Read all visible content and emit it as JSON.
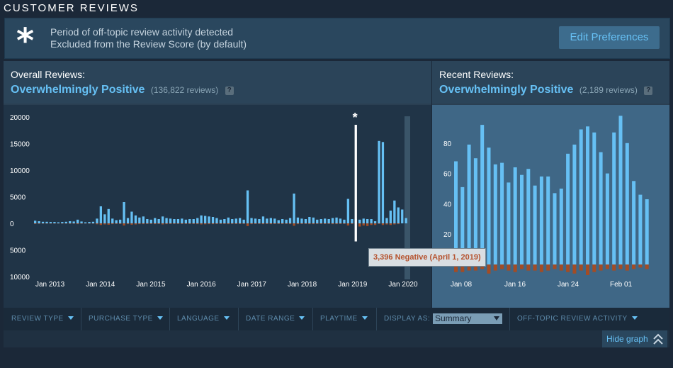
{
  "section_title": "CUSTOMER REVIEWS",
  "notice": {
    "line1": "Period of off-topic review activity detected",
    "line2": "Excluded from the Review Score (by default)",
    "edit_button": "Edit Preferences",
    "icon": "asterisk-icon"
  },
  "overall": {
    "label": "Overall Reviews:",
    "score": "Overwhelmingly Positive",
    "count": "(136,822 reviews)",
    "help": "?"
  },
  "recent": {
    "label": "Recent Reviews:",
    "score": "Overwhelmingly Positive",
    "count": "(2,189 reviews)",
    "help": "?"
  },
  "tooltip": "3,396 Negative (April 1, 2019)",
  "offtopic_marker": "*",
  "filters": {
    "review_type": "REVIEW TYPE",
    "purchase_type": "PURCHASE TYPE",
    "language": "LANGUAGE",
    "date_range": "DATE RANGE",
    "playtime": "PLAYTIME",
    "display_as_label": "DISPLAY AS:",
    "display_as_value": "Summary",
    "off_topic": "OFF-TOPIC REVIEW ACTIVITY"
  },
  "hide_graph": "Hide graph",
  "colors": {
    "positive": "#66c0f4",
    "negative": "#a34c25",
    "accent": "#67c1f5"
  },
  "chart_data": [
    {
      "type": "bar",
      "title": "Overall Reviews",
      "y_ticks_positive": [
        "20000",
        "15000",
        "10000",
        "5000",
        "0"
      ],
      "y_ticks_negative": [
        "5000",
        "10000"
      ],
      "ylim": [
        -10000,
        20000
      ],
      "x_tick_labels": [
        "Jan 2013",
        "Jan 2014",
        "Jan 2015",
        "Jan 2016",
        "Jan 2017",
        "Jan 2018",
        "Jan 2019",
        "Jan 2020"
      ],
      "series": [
        {
          "name": "Positive",
          "values": [
            500,
            400,
            300,
            300,
            250,
            250,
            200,
            250,
            300,
            400,
            350,
            700,
            350,
            200,
            250,
            300,
            900,
            3200,
            1700,
            2700,
            900,
            600,
            700,
            4000,
            1000,
            2200,
            1500,
            1100,
            1300,
            800,
            700,
            1000,
            800,
            1300,
            1000,
            900,
            800,
            800,
            900,
            700,
            800,
            800,
            1000,
            1500,
            1400,
            1300,
            1200,
            1000,
            700,
            800,
            1100,
            800,
            900,
            1000,
            700,
            6200,
            1000,
            900,
            800,
            1300,
            900,
            1000,
            900,
            600,
            800,
            700,
            1000,
            5600,
            1100,
            900,
            800,
            1200,
            1100,
            700,
            800,
            900,
            800,
            1000,
            1100,
            900,
            700,
            4600,
            800,
            800,
            700,
            900,
            800,
            800,
            400,
            15500,
            15300,
            1000,
            2400,
            4300,
            3000,
            2600,
            1000
          ]
        },
        {
          "name": "Negative",
          "values": [
            -100,
            -80,
            -60,
            -60,
            -50,
            -50,
            -40,
            -50,
            -60,
            -80,
            -70,
            -140,
            -70,
            -40,
            -50,
            -60,
            -180,
            -300,
            -200,
            -250,
            -150,
            -100,
            -120,
            -400,
            -150,
            -250,
            -200,
            -150,
            -150,
            -120,
            -100,
            -150,
            -120,
            -200,
            -150,
            -120,
            -100,
            -100,
            -120,
            -100,
            -120,
            -120,
            -150,
            -200,
            -180,
            -150,
            -150,
            -120,
            -100,
            -100,
            -150,
            -100,
            -120,
            -120,
            -100,
            -500,
            -150,
            -120,
            -100,
            -150,
            -120,
            -150,
            -120,
            -100,
            -120,
            -100,
            -150,
            -450,
            -150,
            -120,
            -100,
            -150,
            -150,
            -100,
            -100,
            -120,
            -100,
            -150,
            -150,
            -120,
            -100,
            -400,
            -100,
            -3396,
            -600,
            -400,
            -500,
            -300,
            -300,
            -100,
            -300,
            -200,
            -300,
            -200,
            -150
          ]
        }
      ]
    },
    {
      "type": "bar",
      "title": "Recent Reviews",
      "y_ticks": [
        "80",
        "60",
        "40",
        "20"
      ],
      "ylim": [
        -10,
        100
      ],
      "x_tick_labels": [
        "Jan 08",
        "Jan 16",
        "Jan 24",
        "Feb 01"
      ],
      "series": [
        {
          "name": "Positive",
          "values": [
            68,
            51,
            79,
            70,
            92,
            77,
            66,
            67,
            54,
            64,
            59,
            63,
            52,
            58,
            58,
            47,
            50,
            73,
            79,
            89,
            91,
            87,
            74,
            60,
            87,
            98,
            80,
            55,
            46,
            43
          ]
        },
        {
          "name": "Negative",
          "values": [
            -5,
            -5,
            -4,
            -4,
            -3,
            -6,
            -4,
            -3,
            -4,
            -5,
            -3,
            -4,
            -4,
            -5,
            -4,
            -3,
            -4,
            -5,
            -6,
            -4,
            -7,
            -5,
            -4,
            -3,
            -4,
            -3,
            -4,
            -3,
            -2,
            -3
          ]
        }
      ]
    }
  ]
}
